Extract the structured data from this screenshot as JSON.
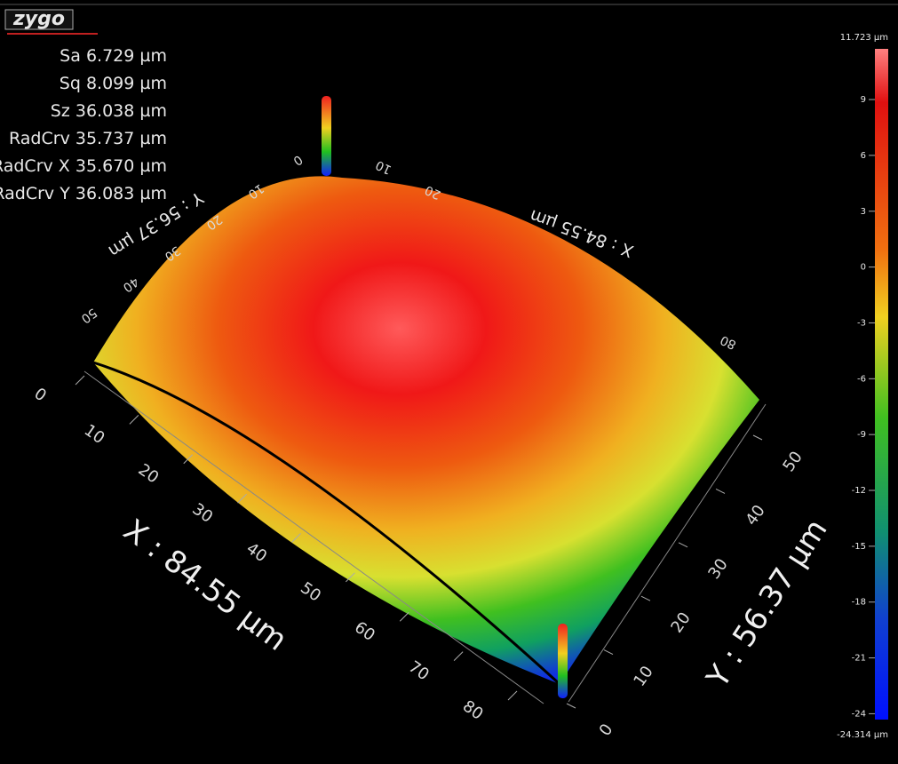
{
  "logo": "zygo",
  "stats": [
    {
      "name": "Sa",
      "value": "6.729",
      "unit": "µm"
    },
    {
      "name": "Sq",
      "value": "8.099",
      "unit": "µm"
    },
    {
      "name": "Sz",
      "value": "36.038",
      "unit": "µm"
    },
    {
      "name": "RadCrv",
      "value": "35.737",
      "unit": "µm"
    },
    {
      "name": "RadCrv X",
      "value": "35.670",
      "unit": "µm"
    },
    {
      "name": "RadCrv Y",
      "value": "36.083",
      "unit": "µm"
    }
  ],
  "colorbar": {
    "max_label": "11.723 µm",
    "min_label": "-24.314 µm",
    "lim": [
      -24.314,
      11.723
    ],
    "ticks": [
      9,
      6,
      3,
      0,
      -3,
      -6,
      -9,
      -12,
      -15,
      -18,
      -21,
      -24
    ]
  },
  "x_axis": {
    "title": "X : 84.55 µm",
    "ticks": [
      0,
      10,
      20,
      30,
      40,
      50,
      60,
      70,
      80
    ]
  },
  "y_axis": {
    "title": "Y : 56.37 µm",
    "ticks": [
      0,
      10,
      20,
      30,
      40,
      50
    ]
  },
  "back_x_axis": {
    "title": "X : 84.55 µm",
    "ticks": [
      80,
      20,
      10
    ]
  },
  "back_y_axis": {
    "title": "Y : 56.37 µm",
    "ticks": [
      0,
      10,
      20,
      30,
      40,
      50
    ]
  }
}
